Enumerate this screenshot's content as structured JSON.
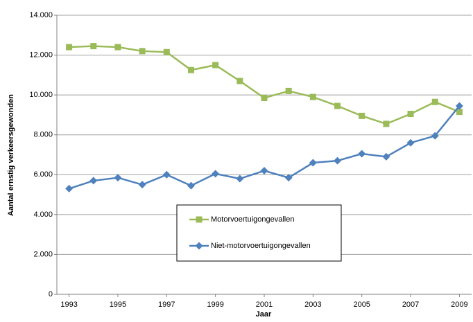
{
  "chart_data": {
    "type": "line",
    "x_label": "Jaar",
    "y_label": "Aantal ernstig verkeersgewonden",
    "x": [
      1993,
      1994,
      1995,
      1996,
      1997,
      1998,
      1999,
      2000,
      2001,
      2002,
      2003,
      2004,
      2005,
      2006,
      2007,
      2008,
      2009
    ],
    "series": [
      {
        "name": "Motorvoertuigongevallen",
        "color": "#9bbb59",
        "marker": "square",
        "values": [
          12400,
          12450,
          12400,
          12200,
          12150,
          11250,
          11500,
          10700,
          9850,
          10200,
          9900,
          9450,
          8950,
          8550,
          9050,
          9650,
          9150
        ]
      },
      {
        "name": "Niet-motorvoertuigongevallen",
        "color": "#4f81bd",
        "marker": "diamond",
        "values": [
          5300,
          5700,
          5850,
          5500,
          6000,
          5450,
          6050,
          5800,
          6200,
          5850,
          6600,
          6700,
          7050,
          6900,
          7600,
          7950,
          9450
        ]
      }
    ],
    "xlim": [
      1992.5,
      2009.5
    ],
    "xticks": [
      1993,
      1995,
      1997,
      1999,
      2001,
      2003,
      2005,
      2007,
      2009
    ],
    "ylim": [
      0,
      14000
    ],
    "yticks": [
      {
        "value": 0,
        "label": "0"
      },
      {
        "value": 2000,
        "label": "2.000"
      },
      {
        "value": 4000,
        "label": "4.000"
      },
      {
        "value": 6000,
        "label": "6.000"
      },
      {
        "value": 8000,
        "label": "8.000"
      },
      {
        "value": 10000,
        "label": "10.000"
      },
      {
        "value": 12000,
        "label": "12.000"
      },
      {
        "value": 14000,
        "label": "14.000"
      }
    ],
    "grid": true
  }
}
